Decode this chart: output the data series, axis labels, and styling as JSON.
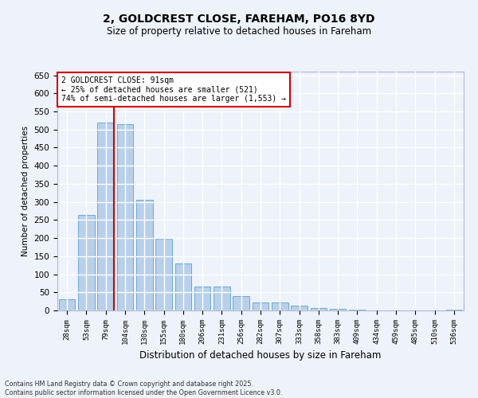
{
  "title_line1": "2, GOLDCREST CLOSE, FAREHAM, PO16 8YD",
  "title_line2": "Size of property relative to detached houses in Fareham",
  "xlabel": "Distribution of detached houses by size in Fareham",
  "ylabel": "Number of detached properties",
  "categories": [
    "28sqm",
    "53sqm",
    "79sqm",
    "104sqm",
    "130sqm",
    "155sqm",
    "180sqm",
    "206sqm",
    "231sqm",
    "256sqm",
    "282sqm",
    "307sqm",
    "333sqm",
    "358sqm",
    "383sqm",
    "409sqm",
    "434sqm",
    "459sqm",
    "485sqm",
    "510sqm",
    "536sqm"
  ],
  "values": [
    30,
    265,
    520,
    515,
    305,
    197,
    130,
    65,
    65,
    40,
    23,
    23,
    14,
    7,
    5,
    2,
    1,
    0,
    1,
    0,
    3
  ],
  "bar_color": "#b8d0ea",
  "bar_edge_color": "#6aaad4",
  "vline_color": "#cc0000",
  "vline_x_index": 2,
  "annotation_text": "2 GOLDCREST CLOSE: 91sqm\n← 25% of detached houses are smaller (521)\n74% of semi-detached houses are larger (1,553) →",
  "annotation_box_color": "#ffffff",
  "annotation_box_edge": "#cc0000",
  "ylim": [
    0,
    660
  ],
  "yticks": [
    0,
    50,
    100,
    150,
    200,
    250,
    300,
    350,
    400,
    450,
    500,
    550,
    600,
    650
  ],
  "background_color": "#eef2fb",
  "grid_color": "#ffffff",
  "footer_line1": "Contains HM Land Registry data © Crown copyright and database right 2025.",
  "footer_line2": "Contains public sector information licensed under the Open Government Licence v3.0."
}
